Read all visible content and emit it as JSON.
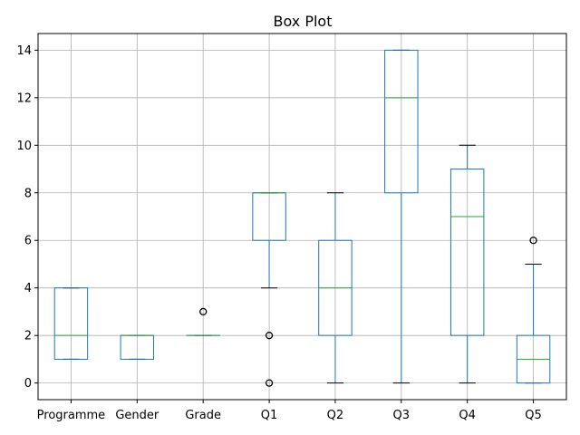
{
  "chart_data": {
    "type": "boxplot",
    "title": "Box Plot",
    "xlabel": "",
    "ylabel": "",
    "ylim": [
      -0.7,
      14.7
    ],
    "yticks": [
      0,
      2,
      4,
      6,
      8,
      10,
      12,
      14
    ],
    "grid": true,
    "categories": [
      "Programme",
      "Gender",
      "Grade",
      "Q1",
      "Q2",
      "Q3",
      "Q4",
      "Q5"
    ],
    "boxes": [
      {
        "label": "Programme",
        "whisker_low": 1,
        "q1": 1,
        "median": 2,
        "q3": 4,
        "whisker_high": 4,
        "outliers": []
      },
      {
        "label": "Gender",
        "whisker_low": 1,
        "q1": 1,
        "median": 2,
        "q3": 2,
        "whisker_high": 2,
        "outliers": []
      },
      {
        "label": "Grade",
        "whisker_low": 2,
        "q1": 2,
        "median": 2,
        "q3": 2,
        "whisker_high": 2,
        "outliers": [
          3
        ]
      },
      {
        "label": "Q1",
        "whisker_low": 4,
        "q1": 6,
        "median": 8,
        "q3": 8,
        "whisker_high": 8,
        "outliers": [
          2,
          0
        ]
      },
      {
        "label": "Q2",
        "whisker_low": 0,
        "q1": 2,
        "median": 4,
        "q3": 6,
        "whisker_high": 8,
        "outliers": []
      },
      {
        "label": "Q3",
        "whisker_low": 0,
        "q1": 8,
        "median": 12,
        "q3": 14,
        "whisker_high": 14,
        "outliers": []
      },
      {
        "label": "Q4",
        "whisker_low": 0,
        "q1": 2,
        "median": 7,
        "q3": 9,
        "whisker_high": 10,
        "outliers": []
      },
      {
        "label": "Q5",
        "whisker_low": 0,
        "q1": 0,
        "median": 1,
        "q3": 2,
        "whisker_high": 5,
        "outliers": [
          6
        ]
      }
    ],
    "colors": {
      "box": "#1f77b4",
      "median": "#2ca02c",
      "whisker": "#1f77b4",
      "cap": "#000000",
      "grid": "#b0b0b0"
    }
  }
}
